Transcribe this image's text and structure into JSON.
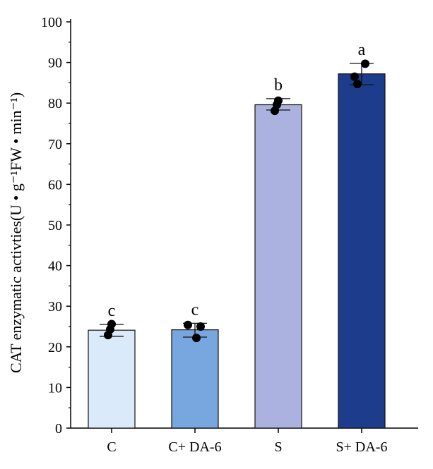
{
  "chart_data": {
    "type": "bar",
    "title": "",
    "xlabel": "",
    "ylabel": "CAT enzymatic activties(U • g⁻¹FW • min⁻¹)",
    "ylim": [
      0,
      100
    ],
    "yticks": [
      0,
      10,
      20,
      30,
      40,
      50,
      60,
      70,
      80,
      90,
      100
    ],
    "grid": false,
    "categories": [
      "C",
      "C+ DA-6",
      "S",
      "S+ DA-6"
    ],
    "values": [
      24.1,
      24.2,
      79.6,
      87.2
    ],
    "error_low": [
      22.6,
      22.4,
      78.3,
      84.5
    ],
    "error_high": [
      25.5,
      25.8,
      81.1,
      89.8
    ],
    "points": [
      [
        25.6,
        24.3,
        22.9
      ],
      [
        25.4,
        25.0,
        22.2
      ],
      [
        80.6,
        79.6,
        78.1
      ],
      [
        89.7,
        86.5,
        84.7
      ]
    ],
    "significance_letters": [
      "c",
      "c",
      "b",
      "a"
    ],
    "colors": [
      "#dbeafb",
      "#78a6de",
      "#abb2df",
      "#1e3c8c"
    ]
  }
}
